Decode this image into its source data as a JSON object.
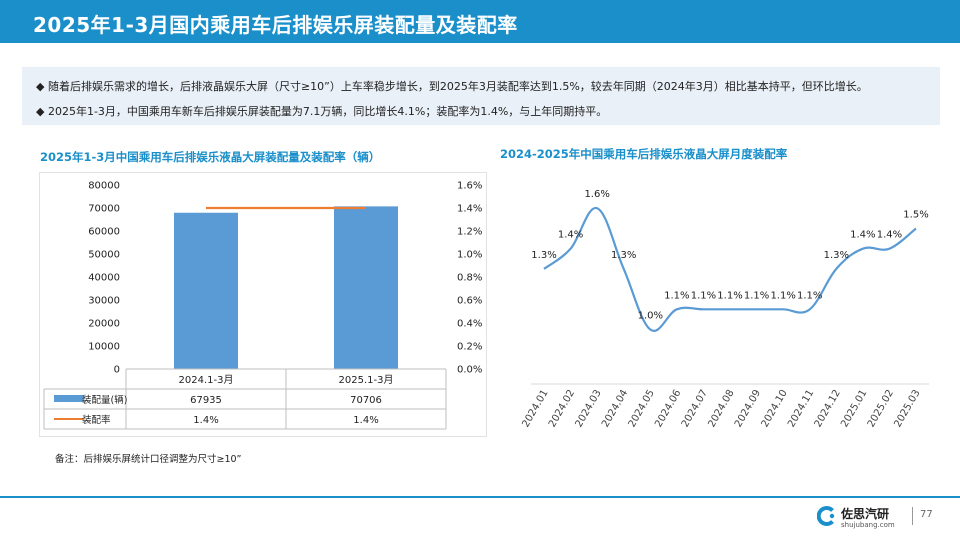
{
  "header": {
    "title": "2025年1-3月国内乘用车后排娱乐屏装配量及装配率"
  },
  "bullets": [
    "◆  随着后排娱乐需求的增长，后排液晶娱乐大屏（尺寸≥10”）上车率稳步增长，到2025年3月装配率达到1.5%，较去年同期（2024年3月）相比基本持平，但环比增长。",
    "◆ 2025年1-3月，中国乘用车新车后排娱乐屏装配量为7.1万辆，同比增长4.1%；装配率为1.4%，与上年同期持平。"
  ],
  "chart_data": [
    {
      "type": "bar",
      "title": "2025年1-3月中国乘用车后排娱乐液晶大屏装配量及装配率（辆）",
      "categories": [
        "2024.1-3月",
        "2025.1-3月"
      ],
      "series": [
        {
          "name": "装配量(辆)",
          "type": "bar",
          "axis": "left",
          "values": [
            67935,
            70706
          ],
          "value_labels": [
            "67935",
            "70706"
          ],
          "color": "#5b9bd5"
        },
        {
          "name": "装配率",
          "type": "line",
          "axis": "right",
          "values": [
            1.4,
            1.4
          ],
          "value_labels": [
            "1.4%",
            "1.4%"
          ],
          "color": "#ed7d31"
        }
      ],
      "ylim_left": [
        0,
        80000
      ],
      "yticks_left": [
        "80000",
        "70000",
        "60000",
        "50000",
        "40000",
        "30000",
        "20000",
        "10000",
        "0"
      ],
      "ylim_right": [
        0,
        1.6
      ],
      "yticks_right": [
        "1.6%",
        "1.4%",
        "1.2%",
        "1.0%",
        "0.8%",
        "0.6%",
        "0.4%",
        "0.2%",
        "0.0%"
      ],
      "legend": "data-table"
    },
    {
      "type": "line",
      "title": "2024-2025年中国乘用车后排娱乐液晶大屏月度装配率",
      "x": [
        "2024.01",
        "2024.02",
        "2024.03",
        "2024.04",
        "2024.05",
        "2024.06",
        "2024.07",
        "2024.08",
        "2024.09",
        "2024.10",
        "2024.11",
        "2024.12",
        "2025.01",
        "2025.02",
        "2025.03"
      ],
      "series": [
        {
          "values": [
            1.3,
            1.4,
            1.6,
            1.3,
            1.0,
            1.1,
            1.1,
            1.1,
            1.1,
            1.1,
            1.1,
            1.3,
            1.4,
            1.4,
            1.5
          ],
          "labels": [
            "1.3%",
            "1.4%",
            "1.6%",
            "1.3%",
            "1.0%",
            "1.1%",
            "1.1%",
            "1.1%",
            "1.1%",
            "1.1%",
            "1.1%",
            "1.3%",
            "1.4%",
            "1.4%",
            "1.5%"
          ],
          "color": "#5b9bd5"
        }
      ],
      "grid": false
    }
  ],
  "note": "备注：后排娱乐屏统计口径调整为尺寸≥10”",
  "footer": {
    "brand": "佐思汽研",
    "url": "shujubang.com",
    "page": "77"
  },
  "colors": {
    "accent": "#1a8fca",
    "bar": "#5b9bd5",
    "rate": "#ed7d31"
  }
}
